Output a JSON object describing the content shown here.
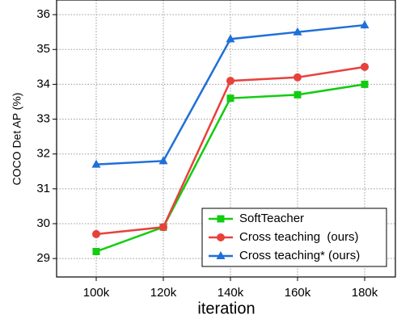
{
  "chart_data": {
    "type": "line",
    "x_label": "iteration",
    "y_label": "COCO Det AP (%)",
    "categories": [
      "100k",
      "120k",
      "140k",
      "160k",
      "180k"
    ],
    "series": [
      {
        "name": "SoftTeacher",
        "color": "#11cc11",
        "marker": "square",
        "values": [
          29.2,
          29.9,
          33.6,
          33.7,
          34.0
        ]
      },
      {
        "name": "Cross teaching  (ours)",
        "color": "#e8413c",
        "marker": "circle",
        "values": [
          29.7,
          29.9,
          34.1,
          34.2,
          34.5
        ]
      },
      {
        "name": "Cross teaching* (ours)",
        "color": "#1f6fd8",
        "marker": "triangle",
        "values": [
          31.7,
          31.8,
          35.3,
          35.5,
          35.7
        ]
      }
    ],
    "ylim": [
      28.47,
      36.42
    ],
    "yticks": [
      29,
      30,
      31,
      32,
      33,
      34,
      35,
      36
    ],
    "grid": true,
    "legend": "lower right"
  }
}
